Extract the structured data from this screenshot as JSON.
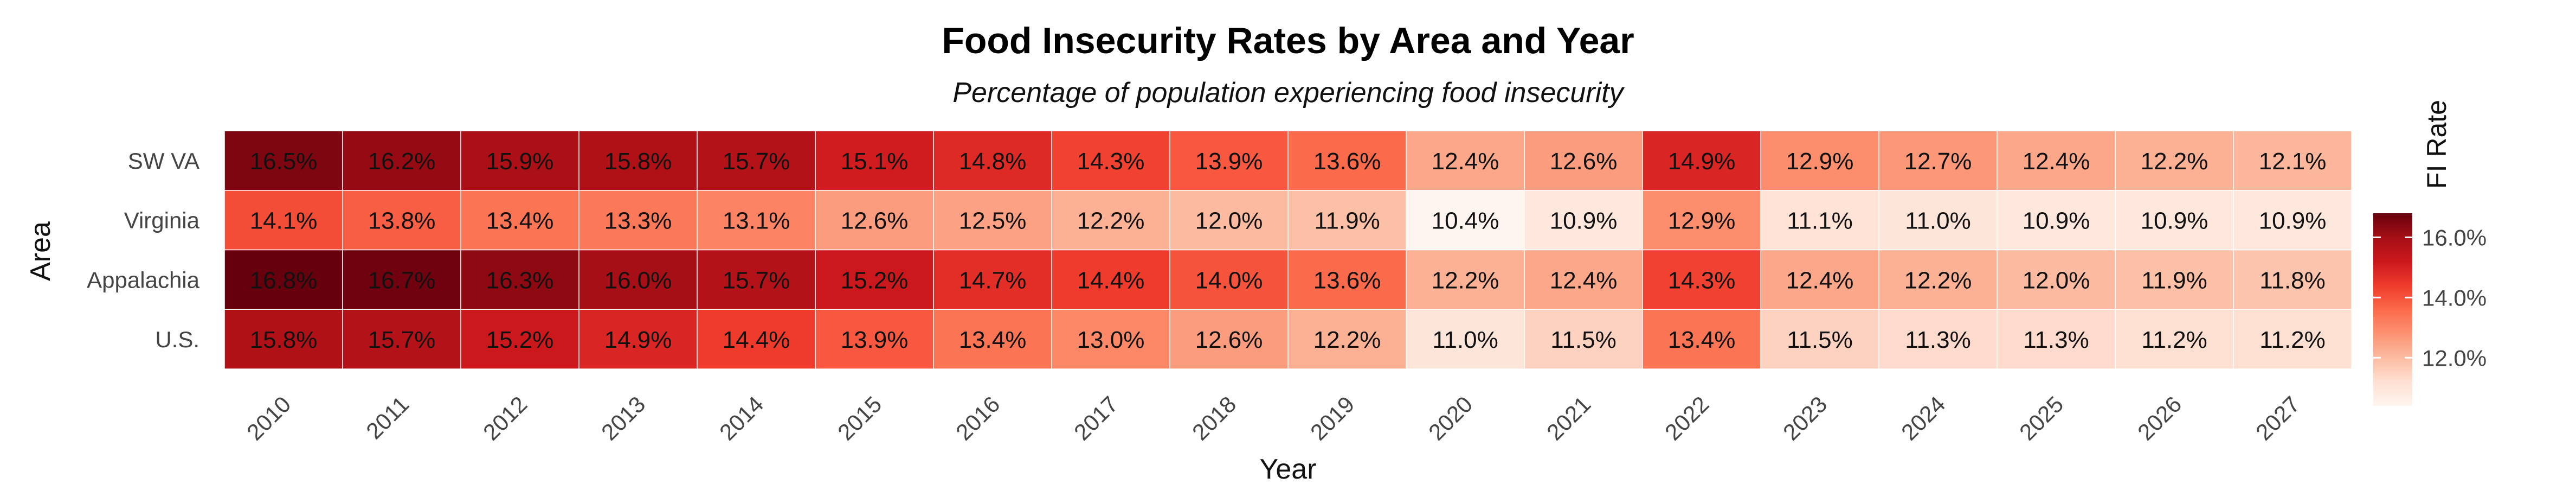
{
  "chart_data": {
    "type": "heatmap",
    "title": "Food Insecurity Rates by Area and Year",
    "subtitle": "Percentage of population experiencing food insecurity",
    "xlabel": "Year",
    "ylabel": "Area",
    "x": [
      "2010",
      "2011",
      "2012",
      "2013",
      "2014",
      "2015",
      "2016",
      "2017",
      "2018",
      "2019",
      "2020",
      "2021",
      "2022",
      "2023",
      "2024",
      "2025",
      "2026",
      "2027"
    ],
    "y": [
      "SW VA",
      "Virginia",
      "Appalachia",
      "U.S."
    ],
    "values": [
      [
        16.5,
        16.2,
        15.9,
        15.8,
        15.7,
        15.1,
        14.8,
        14.3,
        13.9,
        13.6,
        12.4,
        12.6,
        14.9,
        12.9,
        12.7,
        12.4,
        12.2,
        12.1
      ],
      [
        14.1,
        13.8,
        13.4,
        13.3,
        13.1,
        12.6,
        12.5,
        12.2,
        12.0,
        11.9,
        10.4,
        10.9,
        12.9,
        11.1,
        11.0,
        10.9,
        10.9,
        10.9
      ],
      [
        16.8,
        16.7,
        16.3,
        16.0,
        15.7,
        15.2,
        14.7,
        14.4,
        14.0,
        13.6,
        12.2,
        12.4,
        14.3,
        12.4,
        12.2,
        12.0,
        11.9,
        11.8
      ],
      [
        15.8,
        15.7,
        15.2,
        14.9,
        14.4,
        13.9,
        13.4,
        13.0,
        12.6,
        12.2,
        11.0,
        11.5,
        13.4,
        11.5,
        11.3,
        11.3,
        11.2,
        11.2
      ]
    ],
    "value_suffix": "%",
    "legend": {
      "title": "FI Rate",
      "ticks": [
        12.0,
        14.0,
        16.0
      ],
      "tick_labels": [
        "12.0%",
        "14.0%",
        "16.0%"
      ],
      "range": [
        10.4,
        16.8
      ],
      "position": "right"
    },
    "colors": [
      "#fff5f0",
      "#fee0d2",
      "#fcbba1",
      "#fc9272",
      "#fb6a4a",
      "#ef3b2c",
      "#cb181d",
      "#a50f15",
      "#67000d"
    ]
  }
}
